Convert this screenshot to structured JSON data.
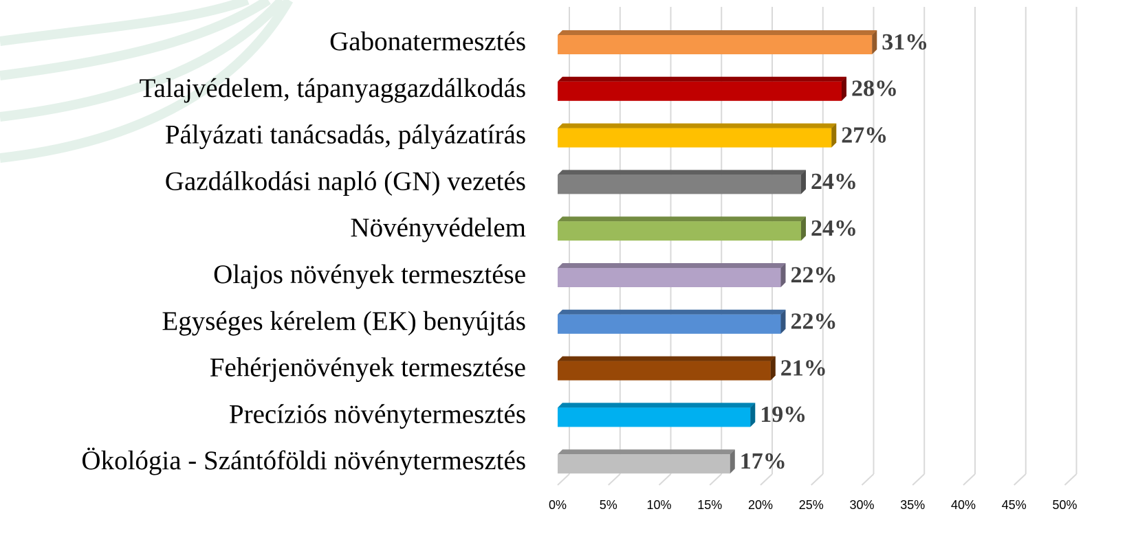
{
  "chart_data": {
    "type": "bar",
    "categories": [
      "Gabonatermesztés",
      "Talajvédelem, tápanyaggazdálkodás",
      "Pályázati tanácsadás, pályázatírás",
      "Gazdálkodási napló (GN) vezetés",
      "Növényvédelem",
      "Olajos növények termesztése",
      "Egységes kérelem (EK) benyújtás",
      "Fehérjenövények termesztése",
      "Precíziós növénytermesztés",
      "Ökológia - Szántóföldi növénytermesztés"
    ],
    "values": [
      31,
      28,
      27,
      24,
      24,
      22,
      22,
      21,
      19,
      17
    ],
    "value_labels": [
      "31%",
      "28%",
      "27%",
      "24%",
      "24%",
      "22%",
      "22%",
      "21%",
      "19%",
      "17%"
    ],
    "colors": [
      "#f79646",
      "#c00000",
      "#ffc000",
      "#808080",
      "#9bbb59",
      "#b3a2c7",
      "#558ed5",
      "#984807",
      "#00b0f0",
      "#bfbfbf"
    ],
    "xlim": [
      0,
      50
    ],
    "xticks": [
      {
        "value": 0,
        "label": "0%"
      },
      {
        "value": 5,
        "label": "5%"
      },
      {
        "value": 10,
        "label": "10%"
      },
      {
        "value": 15,
        "label": "15%"
      },
      {
        "value": 20,
        "label": "20%"
      },
      {
        "value": 25,
        "label": "25%"
      },
      {
        "value": 30,
        "label": "30%"
      },
      {
        "value": 35,
        "label": "35%"
      },
      {
        "value": 40,
        "label": "40%"
      },
      {
        "value": 45,
        "label": "45%"
      },
      {
        "value": 50,
        "label": "50%"
      }
    ],
    "grid": true
  }
}
